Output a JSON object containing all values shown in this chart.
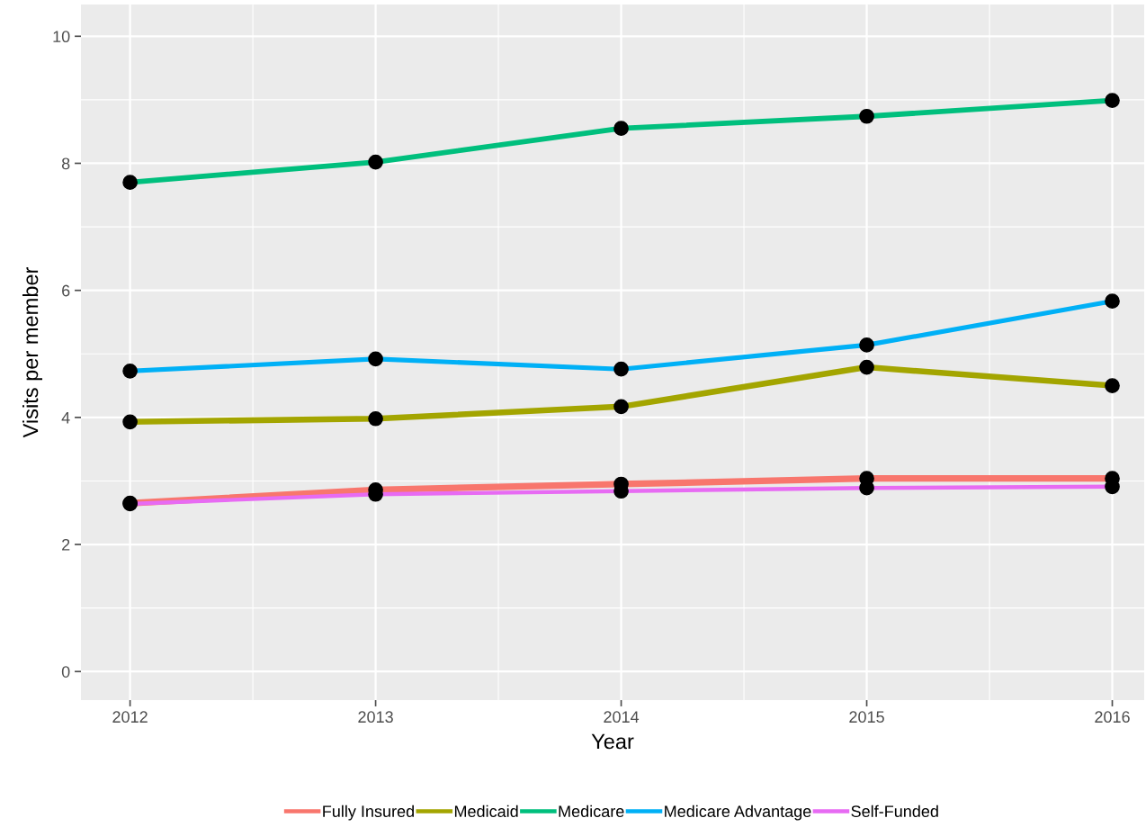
{
  "chart_data": {
    "type": "line",
    "xlabel": "Year",
    "ylabel": "Visits per member",
    "x": [
      2012,
      2013,
      2014,
      2015,
      2016
    ],
    "series": [
      {
        "name": "Fully Insured",
        "color": "#f8766d",
        "values": [
          2.65,
          2.86,
          2.95,
          3.04,
          3.04
        ]
      },
      {
        "name": "Medicaid",
        "color": "#a3a500",
        "values": [
          3.93,
          3.98,
          4.17,
          4.79,
          4.5
        ]
      },
      {
        "name": "Medicare",
        "color": "#00bf7d",
        "values": [
          7.7,
          8.02,
          8.55,
          8.74,
          8.99
        ]
      },
      {
        "name": "Medicare Advantage",
        "color": "#00b0f6",
        "values": [
          4.73,
          4.92,
          4.76,
          5.14,
          5.83
        ]
      },
      {
        "name": "Self-Funded",
        "color": "#e76bf3",
        "values": [
          2.64,
          2.79,
          2.84,
          2.89,
          2.91
        ]
      }
    ],
    "xlim": [
      2011.8,
      2016.13
    ],
    "xticks": [
      2012,
      2013,
      2014,
      2015,
      2016
    ],
    "ylim": [
      -0.45,
      10.5
    ],
    "yticks": [
      0,
      2,
      4,
      6,
      8,
      10
    ],
    "grid": true,
    "legend": "bottom",
    "marker": "circle",
    "line_style": "solid"
  }
}
